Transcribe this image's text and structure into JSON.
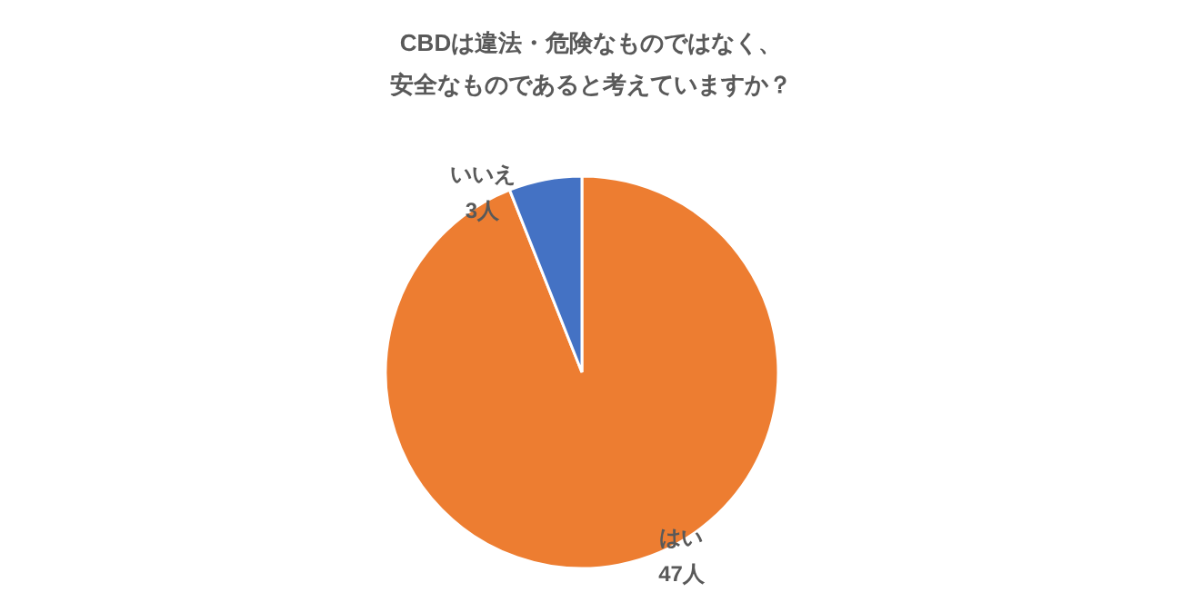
{
  "chart_data": {
    "type": "pie",
    "title": "CBDは違法・危険なものではなく、安全なものであると考えていますか？",
    "categories": [
      "はい",
      "いいえ"
    ],
    "values": [
      47,
      3
    ],
    "colors": [
      "#ed7d31",
      "#4472c4"
    ],
    "value_labels": [
      "47人",
      "3人"
    ],
    "legend": false
  }
}
